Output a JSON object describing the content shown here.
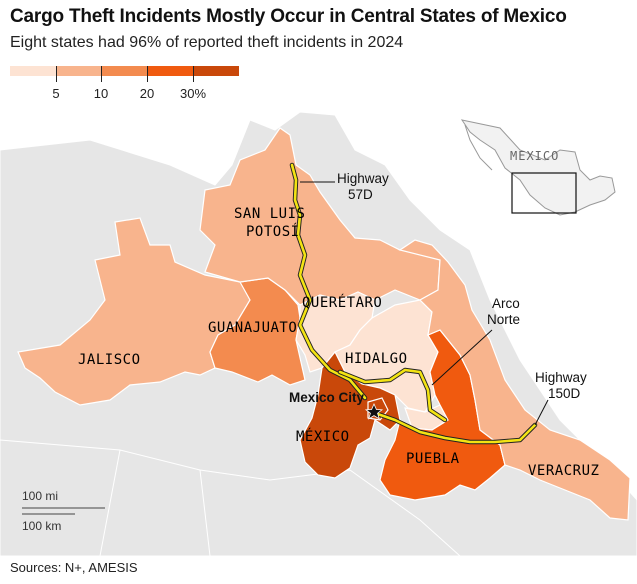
{
  "title": "Cargo Theft Incidents Mostly Occur in Central States of Mexico",
  "subtitle": "Eight states had 96% of reported theft incidents in 2024",
  "legend": {
    "ticks": [
      "5",
      "10",
      "20",
      "30%"
    ],
    "colors": [
      "#fde3d3",
      "#f8b48d",
      "#f38b4f",
      "#f05a0f",
      "#c9480a"
    ]
  },
  "states": [
    {
      "name": "SAN LUIS\nPOTOSÍ",
      "color": "#f8b48d"
    },
    {
      "name": "QUERÉTARO",
      "color": "#fde3d3"
    },
    {
      "name": "GUANAJUATO",
      "color": "#f38b4f"
    },
    {
      "name": "JALISCO",
      "color": "#f8b48d"
    },
    {
      "name": "HIDALGO",
      "color": "#fde3d3"
    },
    {
      "name": "MÉXICO",
      "color": "#c9480a"
    },
    {
      "name": "PUEBLA",
      "color": "#f05a0f"
    },
    {
      "name": "VERACRUZ",
      "color": "#f8b48d"
    }
  ],
  "annotations": {
    "highway57": "Highway\n57D",
    "arco": "Arco\nNorte",
    "highway150": "Highway\n150D",
    "mexico_city": "Mexico City"
  },
  "inset_label": "MEXICO",
  "scale": {
    "mi": "100 mi",
    "km": "100 km"
  },
  "source": "Sources: N+, AMESIS",
  "colors": {
    "highway": "#f3e313",
    "base": "#e6e6e6",
    "border": "#ffffff"
  }
}
